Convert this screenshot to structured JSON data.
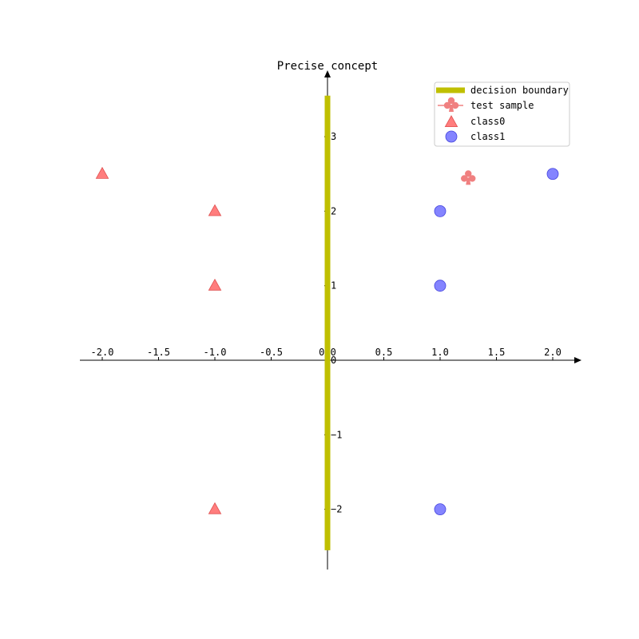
{
  "chart_data": {
    "type": "scatter",
    "title": "Precise concept",
    "xlim": [
      -2.2,
      2.25
    ],
    "ylim": [
      -2.8,
      3.9
    ],
    "x_ticks": [
      -2.0,
      -1.5,
      -1.0,
      -0.5,
      0.0,
      0.5,
      1.0,
      1.5,
      2.0
    ],
    "y_ticks": [
      -2,
      -1,
      0,
      1,
      2,
      3
    ],
    "x_tick_labels": [
      "-2.0",
      "-1.5",
      "-1.0",
      "-0.5",
      "0.0",
      "0.5",
      "1.0",
      "1.5",
      "2.0"
    ],
    "y_tick_labels": [
      "−2",
      "−1",
      "0",
      "1",
      "2",
      "3"
    ],
    "grid": false,
    "spines": "centered-arrows",
    "legend": {
      "placement": "top-right",
      "entries": [
        {
          "label": "decision boundary",
          "marker": "thick-line"
        },
        {
          "label": "test sample",
          "marker": "club"
        },
        {
          "label": "class0",
          "marker": "triangle"
        },
        {
          "label": "class1",
          "marker": "circle"
        }
      ]
    },
    "series": [
      {
        "name": "decision boundary",
        "kind": "line",
        "color": "#bfbf00",
        "points": [
          {
            "x": 0.0,
            "y": -2.55
          },
          {
            "x": 0.0,
            "y": 3.55
          }
        ]
      },
      {
        "name": "test sample",
        "kind": "marker",
        "marker": "club",
        "color": "#f08080",
        "points": [
          {
            "x": 1.25,
            "y": 2.45
          }
        ]
      },
      {
        "name": "class0",
        "kind": "scatter",
        "marker": "triangle",
        "color": "#ff6666",
        "points": [
          {
            "x": -2,
            "y": 2.5
          },
          {
            "x": -1,
            "y": 2
          },
          {
            "x": -1,
            "y": 1
          },
          {
            "x": -1,
            "y": -2
          }
        ]
      },
      {
        "name": "class1",
        "kind": "scatter",
        "marker": "circle",
        "color": "#7777ff",
        "points": [
          {
            "x": 2,
            "y": 2.5
          },
          {
            "x": 1,
            "y": 2
          },
          {
            "x": 1,
            "y": 1
          },
          {
            "x": 1,
            "y": -2
          }
        ]
      }
    ]
  }
}
